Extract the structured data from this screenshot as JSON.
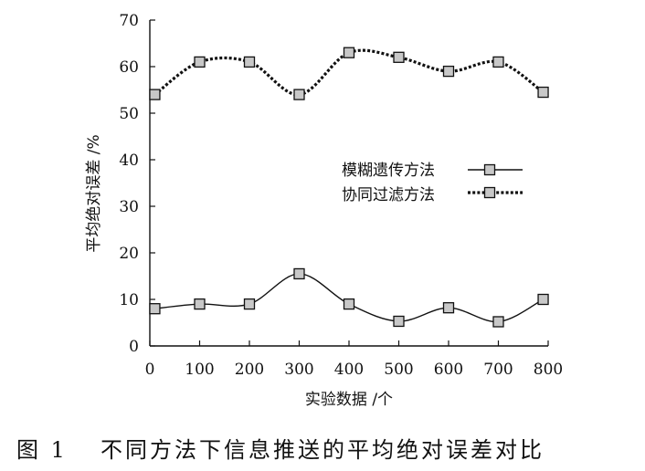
{
  "figure": {
    "caption_number": "图 1",
    "caption_text": "不同方法下信息推送的平均绝对误差对比"
  },
  "chart_data": {
    "type": "line",
    "xlabel": "实验数据 /个",
    "ylabel": "平均绝对误差 /%",
    "xlim": [
      0,
      800
    ],
    "ylim": [
      0,
      70
    ],
    "x_ticks": [
      "0",
      "100",
      "200",
      "300",
      "400",
      "500",
      "600",
      "700",
      "800"
    ],
    "y_ticks": [
      "0",
      "10",
      "20",
      "30",
      "40",
      "50",
      "60",
      "70"
    ],
    "grid": false,
    "legend_position": "center-right",
    "series": [
      {
        "name": "模糊遗传方法",
        "line_style": "solid",
        "marker": "square",
        "color": "#111111",
        "marker_fill": "#c8c8c8",
        "x": [
          10,
          100,
          200,
          300,
          400,
          500,
          600,
          700,
          790
        ],
        "y": [
          8,
          9,
          9,
          15.5,
          9,
          5.3,
          8.2,
          5.2,
          10
        ]
      },
      {
        "name": "协同过滤方法",
        "line_style": "dotted",
        "marker": "square",
        "color": "#111111",
        "marker_fill": "#c8c8c8",
        "x": [
          10,
          100,
          200,
          300,
          400,
          500,
          600,
          700,
          790
        ],
        "y": [
          54,
          61,
          61,
          54,
          63,
          62,
          59,
          61,
          54.5
        ]
      }
    ]
  }
}
